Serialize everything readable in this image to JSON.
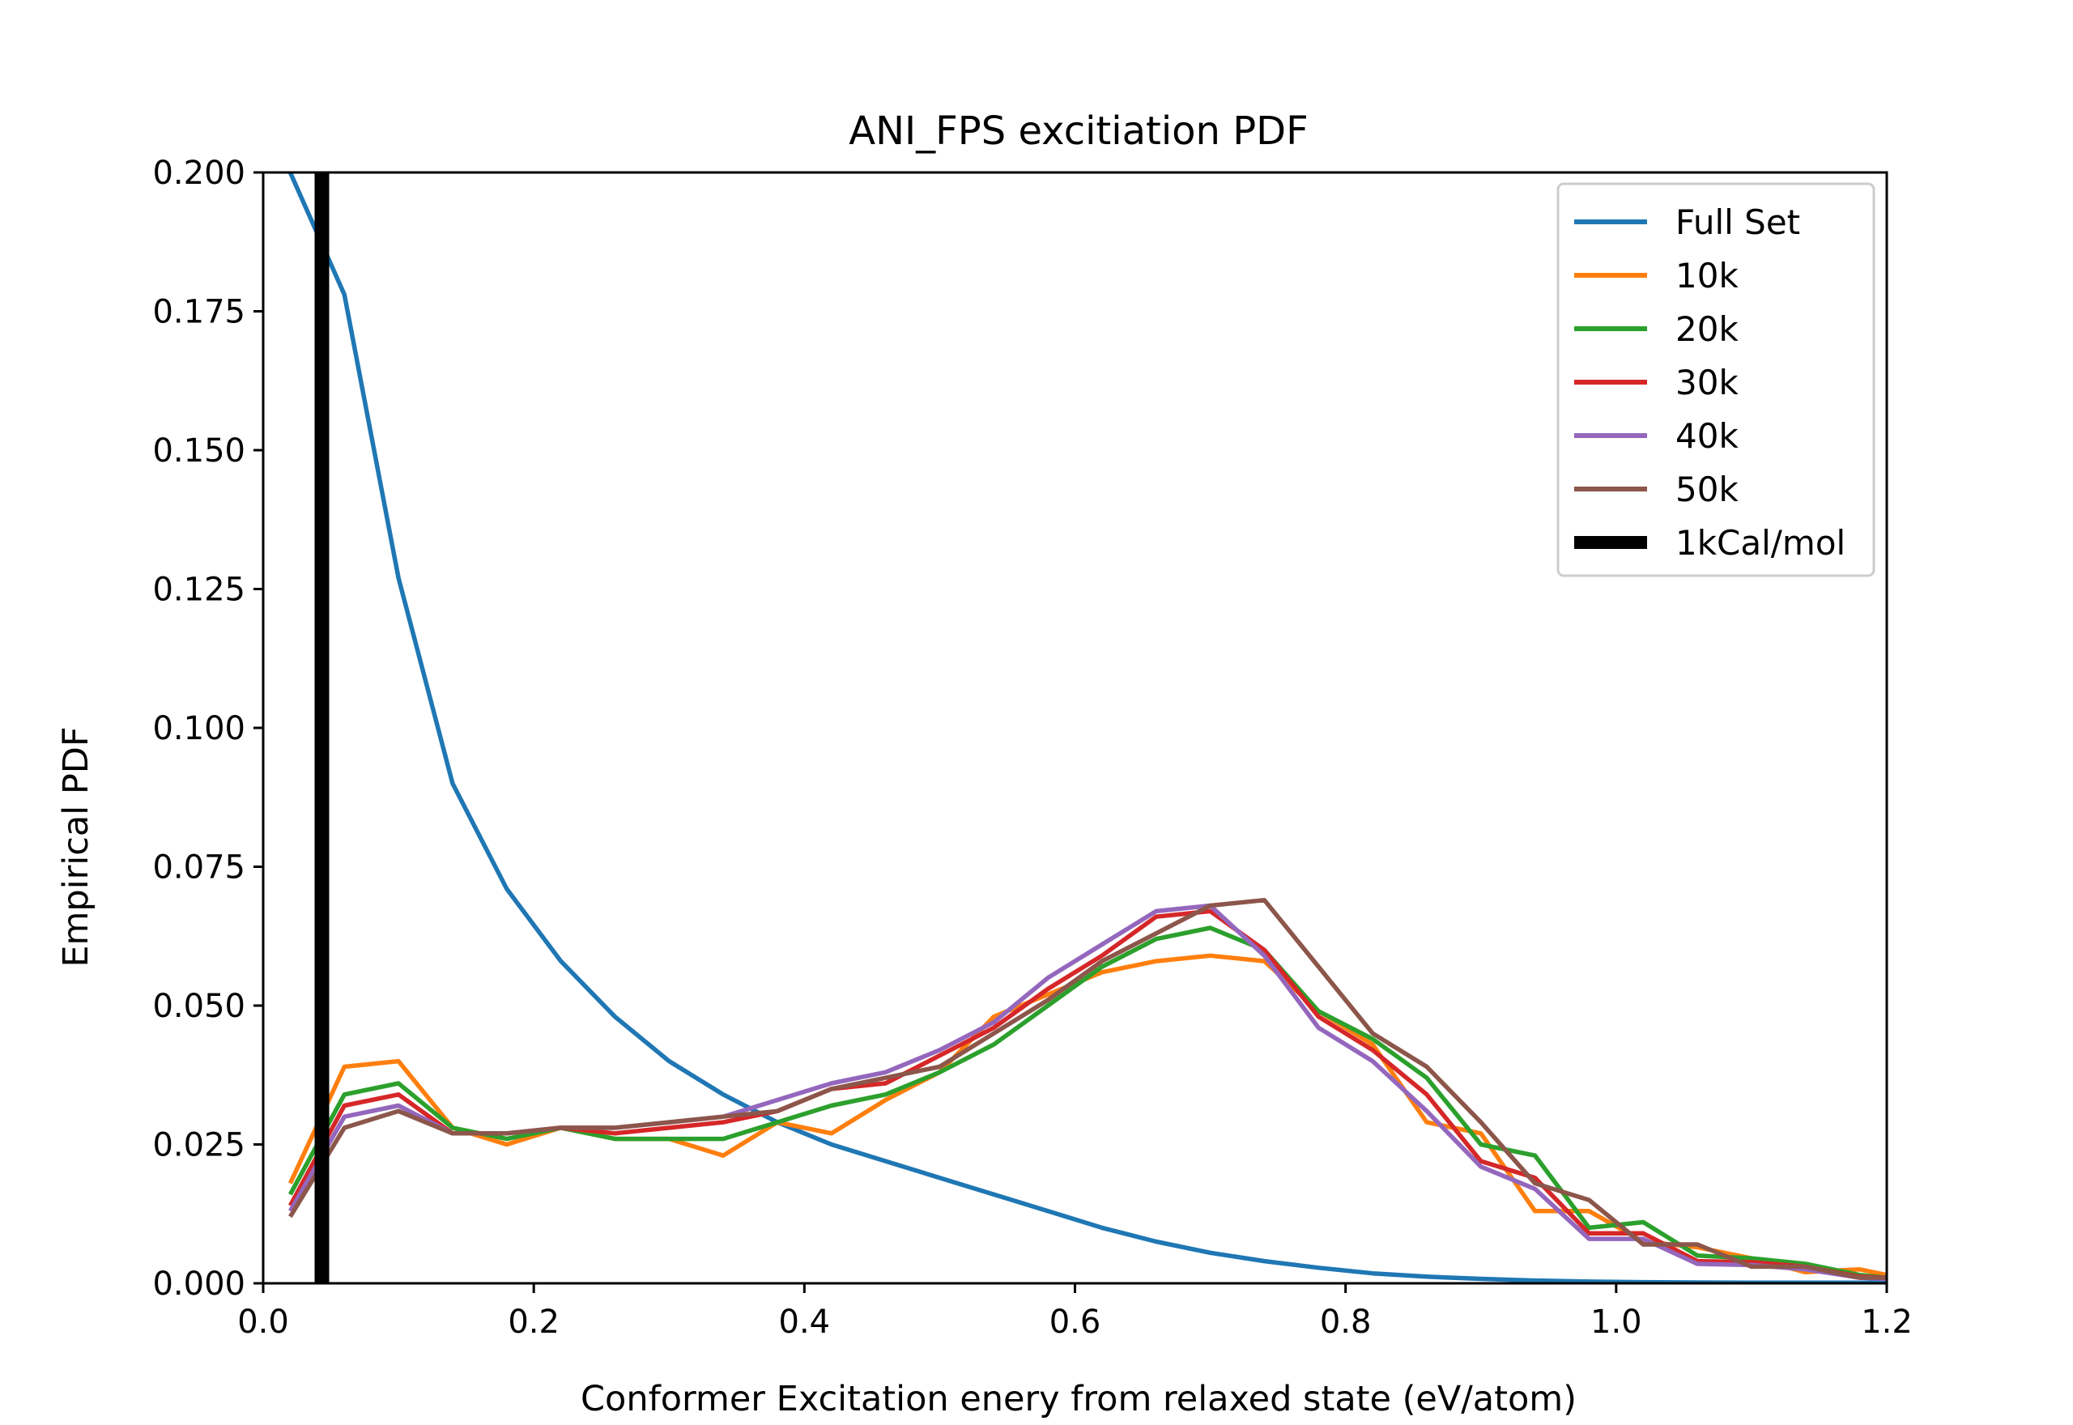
{
  "chart_data": {
    "type": "line",
    "title": "ANI_FPS excitiation PDF",
    "xlabel": "Conformer Excitation enery from relaxed state (eV/atom)",
    "ylabel": "Empirical PDF",
    "xlim": [
      0.0,
      1.2
    ],
    "ylim": [
      0.0,
      0.2
    ],
    "xticks": [
      "0.0",
      "0.2",
      "0.4",
      "0.6",
      "0.8",
      "1.0",
      "1.2"
    ],
    "xtick_values": [
      0.0,
      0.2,
      0.4,
      0.6,
      0.8,
      1.0,
      1.2
    ],
    "yticks": [
      "0.000",
      "0.025",
      "0.050",
      "0.075",
      "0.100",
      "0.125",
      "0.150",
      "0.175",
      "0.200"
    ],
    "ytick_values": [
      0.0,
      0.025,
      0.05,
      0.075,
      0.1,
      0.125,
      0.15,
      0.175,
      0.2
    ],
    "grid": false,
    "legend_position": "top-right",
    "x": [
      0.02,
      0.06,
      0.1,
      0.14,
      0.18,
      0.22,
      0.26,
      0.3,
      0.34,
      0.38,
      0.42,
      0.46,
      0.5,
      0.54,
      0.58,
      0.62,
      0.66,
      0.7,
      0.74,
      0.78,
      0.82,
      0.86,
      0.9,
      0.94,
      0.98,
      1.02,
      1.06,
      1.1,
      1.14,
      1.18,
      1.2
    ],
    "series": [
      {
        "name": "Full Set",
        "color": "#1f77b4",
        "values": [
          0.2,
          0.178,
          0.127,
          0.09,
          0.071,
          0.058,
          0.048,
          0.04,
          0.034,
          0.029,
          0.025,
          0.022,
          0.019,
          0.016,
          0.013,
          0.01,
          0.0075,
          0.0055,
          0.004,
          0.0028,
          0.0018,
          0.0012,
          0.0008,
          0.0005,
          0.0003,
          0.0002,
          0.00015,
          0.0001,
          0.0001,
          0.0001,
          0.0001
        ]
      },
      {
        "name": "10k",
        "color": "#ff7f0e",
        "values": [
          0.018,
          0.039,
          0.04,
          0.028,
          0.025,
          0.028,
          0.026,
          0.026,
          0.023,
          0.029,
          0.027,
          0.033,
          0.038,
          0.048,
          0.052,
          0.056,
          0.058,
          0.059,
          0.058,
          0.049,
          0.043,
          0.029,
          0.027,
          0.013,
          0.013,
          0.0075,
          0.0065,
          0.0045,
          0.002,
          0.0025,
          0.0015
        ]
      },
      {
        "name": "20k",
        "color": "#2ca02c",
        "values": [
          0.016,
          0.034,
          0.036,
          0.028,
          0.026,
          0.028,
          0.026,
          0.026,
          0.026,
          0.029,
          0.032,
          0.034,
          0.038,
          0.043,
          0.05,
          0.057,
          0.062,
          0.064,
          0.06,
          0.049,
          0.044,
          0.037,
          0.025,
          0.023,
          0.01,
          0.011,
          0.005,
          0.0045,
          0.0035,
          0.0015,
          0.001
        ]
      },
      {
        "name": "30k",
        "color": "#d62728",
        "values": [
          0.014,
          0.032,
          0.034,
          0.027,
          0.027,
          0.028,
          0.027,
          0.028,
          0.029,
          0.031,
          0.035,
          0.036,
          0.041,
          0.046,
          0.053,
          0.059,
          0.066,
          0.067,
          0.06,
          0.048,
          0.042,
          0.034,
          0.022,
          0.019,
          0.009,
          0.009,
          0.004,
          0.0038,
          0.003,
          0.0012,
          0.001
        ]
      },
      {
        "name": "40k",
        "color": "#9467bd",
        "values": [
          0.013,
          0.03,
          0.032,
          0.027,
          0.027,
          0.028,
          0.028,
          0.029,
          0.03,
          0.033,
          0.036,
          0.038,
          0.042,
          0.047,
          0.055,
          0.061,
          0.067,
          0.068,
          0.059,
          0.046,
          0.04,
          0.031,
          0.021,
          0.017,
          0.008,
          0.008,
          0.0035,
          0.0033,
          0.0025,
          0.001,
          0.0008
        ]
      },
      {
        "name": "50k",
        "color": "#8c564b",
        "values": [
          0.012,
          0.028,
          0.031,
          0.027,
          0.027,
          0.028,
          0.028,
          0.029,
          0.03,
          0.031,
          0.035,
          0.037,
          0.039,
          0.045,
          0.051,
          0.058,
          0.063,
          0.068,
          0.069,
          0.057,
          0.045,
          0.039,
          0.029,
          0.018,
          0.015,
          0.007,
          0.007,
          0.003,
          0.003,
          0.001,
          0.001
        ]
      },
      {
        "name": "1kCal/mol",
        "color": "#000000",
        "type": "vline",
        "x_value": 0.0434
      }
    ]
  }
}
